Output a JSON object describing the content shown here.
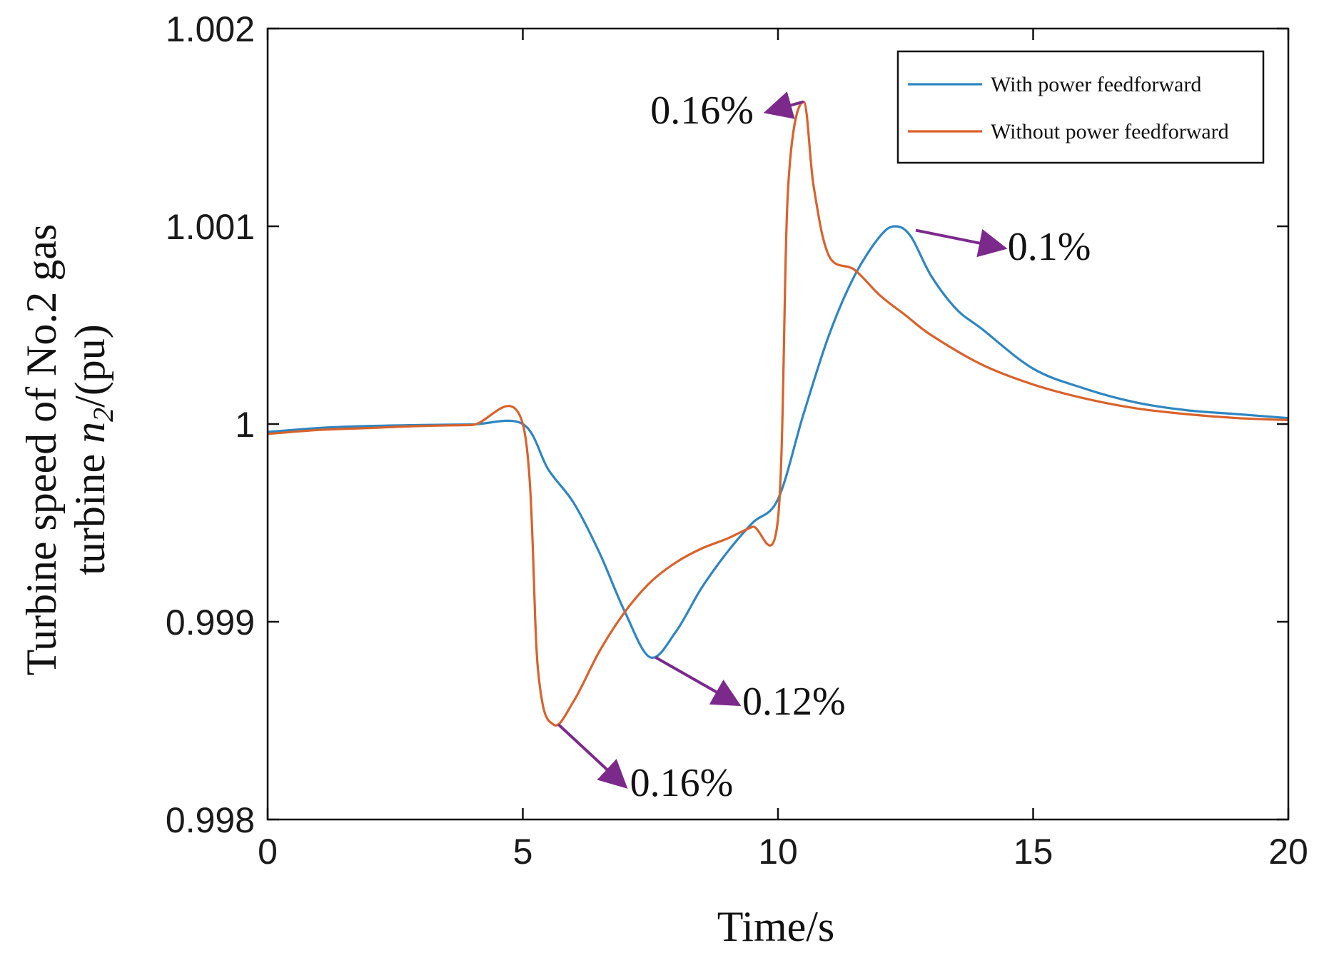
{
  "chart_data": {
    "type": "line",
    "title": "",
    "xlabel": "Time/s",
    "ylabel_line1": "Turbine speed of No.2 gas",
    "ylabel_line2_prefix": "turbine ",
    "ylabel_line2_var": "n",
    "ylabel_line2_sub": "2",
    "ylabel_line2_suffix": "/(pu)",
    "xlim": [
      0,
      20
    ],
    "ylim": [
      0.998,
      1.002
    ],
    "xticks": [
      0,
      5,
      10,
      15,
      20
    ],
    "xtick_labels": [
      "0",
      "5",
      "10",
      "15",
      "20"
    ],
    "yticks": [
      0.998,
      0.999,
      1.0,
      1.001,
      1.002
    ],
    "ytick_labels": [
      "0.998",
      "0.999",
      "1",
      "1.001",
      "1.002"
    ],
    "grid": false,
    "legend_position": "top-right",
    "series": [
      {
        "name": "With power feedforward",
        "color": "#2e86c1",
        "x": [
          0,
          1,
          2,
          3,
          4,
          5,
          5.5,
          6,
          6.5,
          7,
          7.5,
          8,
          8.5,
          9,
          9.5,
          10,
          10.5,
          11,
          11.5,
          12,
          12.3,
          12.6,
          13,
          13.5,
          14,
          15,
          16,
          17,
          18,
          19,
          20
        ],
        "y": [
          0.99996,
          0.99998,
          0.99999,
          0.999995,
          0.999998,
          1.0,
          0.99977,
          0.9996,
          0.99935,
          0.99905,
          0.99882,
          0.99895,
          0.99917,
          0.99935,
          0.9995,
          0.99962,
          1.00005,
          1.00045,
          1.00075,
          1.00095,
          1.001,
          1.00095,
          1.00075,
          1.00058,
          1.00048,
          1.00028,
          1.00018,
          1.00011,
          1.00007,
          1.00005,
          1.00003
        ]
      },
      {
        "name": "Without power feedforward",
        "color": "#d9622b",
        "x": [
          0,
          1,
          2,
          3,
          4,
          5,
          5.3,
          5.6,
          6,
          6.5,
          7,
          7.5,
          8,
          8.5,
          9,
          9.5,
          10,
          10.2,
          10.5,
          10.7,
          11,
          11.5,
          12,
          12.5,
          13,
          14,
          15,
          16,
          17,
          18,
          19,
          20
        ],
        "y": [
          0.99995,
          0.99997,
          0.99998,
          0.99999,
          0.999995,
          1.0,
          0.99875,
          0.99848,
          0.9986,
          0.99885,
          0.99905,
          0.9992,
          0.9993,
          0.99937,
          0.99942,
          0.99948,
          0.99952,
          1.0012,
          1.00163,
          1.0012,
          1.00085,
          1.00078,
          1.00065,
          1.00055,
          1.00045,
          1.0003,
          1.0002,
          1.00013,
          1.00008,
          1.00005,
          1.00003,
          1.00002
        ]
      }
    ],
    "annotations": [
      {
        "text": "0.16%",
        "point": [
          10.5,
          1.00163
        ],
        "label_at": [
          7.5,
          1.00152
        ],
        "anchor": "start"
      },
      {
        "text": "0.1%",
        "point": [
          12.7,
          1.00098
        ],
        "label_at": [
          14.5,
          1.00083
        ],
        "anchor": "start"
      },
      {
        "text": "0.12%",
        "point": [
          7.6,
          0.99882
        ],
        "label_at": [
          9.3,
          0.99853
        ],
        "anchor": "start"
      },
      {
        "text": "0.16%",
        "point": [
          5.7,
          0.99848
        ],
        "label_at": [
          7.1,
          0.99812
        ],
        "anchor": "start"
      }
    ],
    "annotation_arrow_color": "#7b2a8c"
  }
}
